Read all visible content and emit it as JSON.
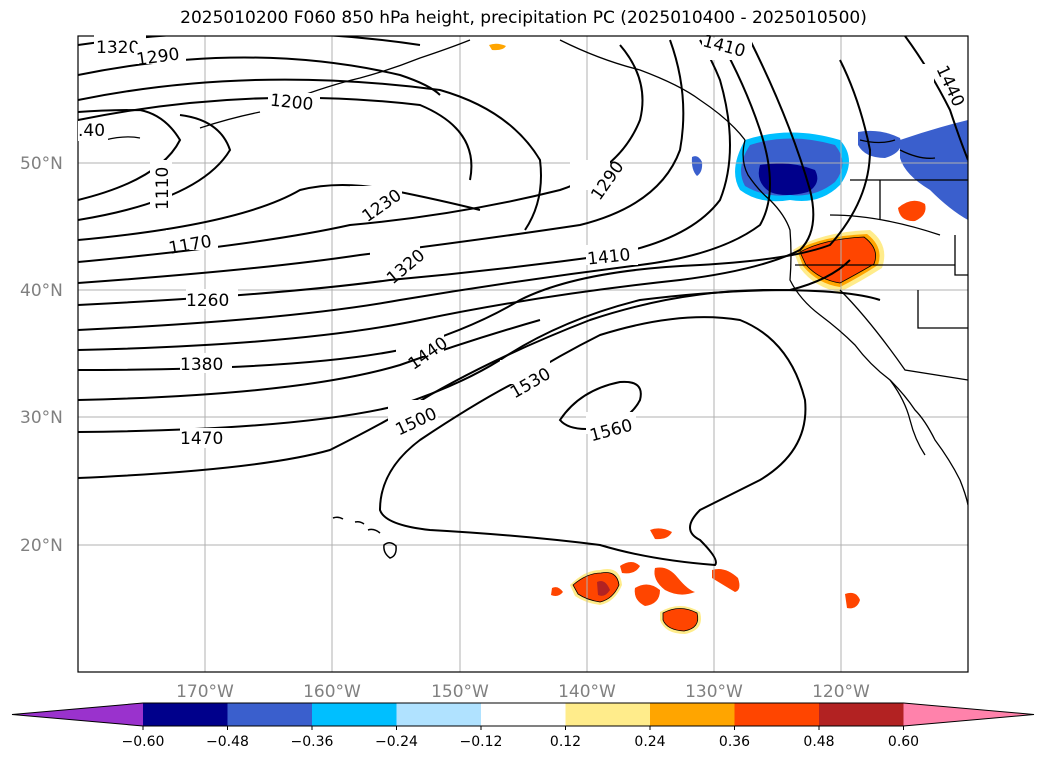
{
  "title": "2025010200 F060 850 hPa height, precipitation PC (2025010400 - 2025010500)",
  "lat_labels": [
    "50°N",
    "40°N",
    "30°N",
    "20°N"
  ],
  "lon_labels": [
    "170°W",
    "160°W",
    "150°W",
    "140°W",
    "130°W",
    "120°W"
  ],
  "contour_labels": [
    "1320",
    "1290",
    "1200",
    "1110",
    ".40",
    "1170",
    "1230",
    "1290",
    "1320",
    "1260",
    "1380",
    "1410",
    "1440",
    "1470",
    "1500",
    "1530",
    "1560",
    "1410",
    "1440"
  ],
  "colorbar": {
    "tick_labels": [
      "−0.60",
      "−0.48",
      "−0.36",
      "−0.24",
      "−0.12",
      "0.12",
      "0.24",
      "0.36",
      "0.48",
      "0.60"
    ],
    "colors": [
      "#9a32cd",
      "#00008b",
      "#3a5fcd",
      "#00bfff",
      "#b0e2ff",
      "#ffffff",
      "#ffec8b",
      "#ffa500",
      "#ff4500",
      "#b22222",
      "#ff82ab"
    ]
  },
  "colors": {
    "contour": "#000000",
    "grid": "#b0b0b0",
    "coast": "#000000"
  }
}
